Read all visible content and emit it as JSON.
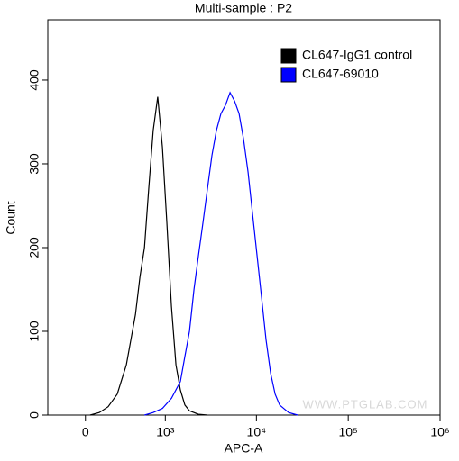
{
  "chart_data": {
    "type": "histogram-line",
    "title": "Multi-sample : P2",
    "x_label": "APC-A",
    "y_label": "Count",
    "watermark": "WWW.PTGLAB.COM",
    "xscale": "asinh",
    "xlim": [
      -300,
      1000000
    ],
    "xticks": [
      0,
      {
        "value": 1000,
        "label": "10³"
      },
      {
        "value": 10000,
        "label": "10⁴"
      },
      {
        "value": 100000,
        "label": "10⁵"
      },
      {
        "value": 1000000,
        "label": "10⁶"
      }
    ],
    "ylim": [
      0,
      472
    ],
    "yticks": [
      0,
      100,
      200,
      300,
      400
    ],
    "legend": "top-right",
    "series": [
      {
        "name": "CL647-IgG1 control",
        "color": "#000000",
        "x": [
          32,
          97,
          165,
          243,
          334,
          442,
          504,
          572,
          644,
          726,
          819,
          927,
          1040,
          1172,
          1315,
          1474,
          1653,
          1856,
          2329,
          2923
        ],
        "values": [
          0,
          3,
          10,
          25,
          60,
          120,
          165,
          200,
          270,
          340,
          380,
          320,
          230,
          130,
          60,
          30,
          12,
          5,
          1,
          0
        ]
      },
      {
        "name": "CL647-69010",
        "color": "#0000ff",
        "x": [
          572,
          726,
          927,
          1172,
          1474,
          1653,
          1856,
          2079,
          2329,
          2610,
          2923,
          3275,
          3666,
          4106,
          4600,
          5154,
          5775,
          6463,
          7233,
          8113,
          9075,
          10175,
          11385,
          12733,
          14273,
          15978,
          17903,
          22440,
          28133
        ],
        "values": [
          0,
          3,
          8,
          20,
          40,
          70,
          100,
          150,
          190,
          230,
          270,
          310,
          340,
          360,
          370,
          385,
          375,
          360,
          330,
          290,
          240,
          190,
          140,
          90,
          50,
          25,
          12,
          3,
          0
        ]
      }
    ]
  }
}
